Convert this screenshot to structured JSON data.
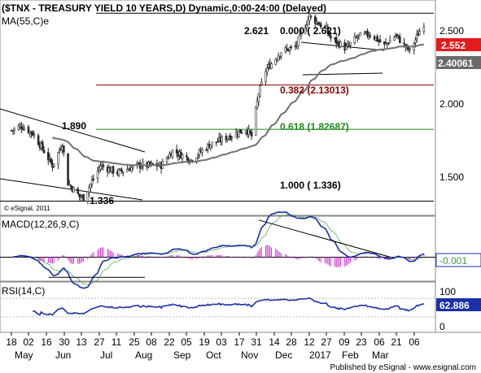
{
  "header": {
    "title": "($TNX - TREASURY YIELD 10 YEARS,D) Dynamic,0:00-24:00 (Delayed)",
    "ma_label": "MA(55,C)e",
    "copyright": "© eSignal, 2011"
  },
  "price_panel": {
    "yaxis": [
      "2.500",
      "2.000",
      "1.500"
    ],
    "last_price": "2.552",
    "ma_value": "2.40061",
    "colors": {
      "last_bg": "#e41a1c",
      "ma_bg": "#6b6b6b",
      "candle": "#2a2a2a",
      "ma_line": "#707070"
    },
    "annotations": {
      "high_0": "2.621",
      "low_label": "1.336",
      "swing_high": "1.890",
      "fib0": "0.000 ( 2.621)",
      "fib382": "0.382 (2.13013)",
      "fib618": "0.618 (1.82687)",
      "fib100": "1.000 ( 1.336)"
    },
    "fib_colors": {
      "fib0": "#000000",
      "fib382": "#8b0000",
      "fib618": "#1a8a1a",
      "fib100": "#000000"
    }
  },
  "macd_panel": {
    "label": "MACD(12,26,9,C)",
    "value": "-0.001",
    "colors": {
      "macd": "#1a2fa8",
      "signal": "#3a9a3a",
      "hist": "#cc33cc"
    }
  },
  "rsi_panel": {
    "label": "RSI(14,C)",
    "value": "62.886",
    "yaxis": [
      "100",
      "0"
    ],
    "color": "#1a2fa8"
  },
  "xaxis": {
    "days": [
      "18",
      "02",
      "16",
      "30",
      "13",
      "27",
      "11",
      "25",
      "08",
      "22",
      "05",
      "19",
      "03",
      "17",
      "31",
      "14",
      "28",
      "12",
      "27",
      "09",
      "23",
      "06",
      "21",
      "06"
    ],
    "months": [
      "May",
      "Jun",
      "Jul",
      "Aug",
      "Sep",
      "Oct",
      "Nov",
      "Dec",
      "2017",
      "Feb",
      "Mar"
    ]
  },
  "footer": "Published by eSignal - www.esignal.com",
  "chart_data": {
    "type": "candlestick",
    "title": "($TNX - TREASURY YIELD 10 YEARS,D) Dynamic,0:00-24:00 (Delayed)",
    "period": "2016-05 to 2017-03 (daily)",
    "close_path": [
      [
        "2016-05-18",
        1.82
      ],
      [
        "2016-05-25",
        1.85
      ],
      [
        "2016-06-02",
        1.8
      ],
      [
        "2016-06-08",
        1.71
      ],
      [
        "2016-06-16",
        1.58
      ],
      [
        "2016-06-23",
        1.73
      ],
      [
        "2016-06-27",
        1.46
      ],
      [
        "2016-07-05",
        1.37
      ],
      [
        "2016-07-08",
        1.36
      ],
      [
        "2016-07-20",
        1.58
      ],
      [
        "2016-08-01",
        1.53
      ],
      [
        "2016-08-15",
        1.58
      ],
      [
        "2016-09-01",
        1.58
      ],
      [
        "2016-09-09",
        1.68
      ],
      [
        "2016-09-22",
        1.62
      ],
      [
        "2016-10-05",
        1.72
      ],
      [
        "2016-10-17",
        1.77
      ],
      [
        "2016-10-31",
        1.83
      ],
      [
        "2016-11-04",
        1.78
      ],
      [
        "2016-11-09",
        2.07
      ],
      [
        "2016-11-14",
        2.23
      ],
      [
        "2016-11-25",
        2.36
      ],
      [
        "2016-12-05",
        2.39
      ],
      [
        "2016-12-15",
        2.6
      ],
      [
        "2016-12-27",
        2.51
      ],
      [
        "2016-12-30",
        2.45
      ],
      [
        "2017-01-10",
        2.38
      ],
      [
        "2017-01-18",
        2.46
      ],
      [
        "2017-01-27",
        2.48
      ],
      [
        "2017-02-06",
        2.4
      ],
      [
        "2017-02-14",
        2.47
      ],
      [
        "2017-02-24",
        2.36
      ],
      [
        "2017-03-02",
        2.48
      ],
      [
        "2017-03-06",
        2.552
      ]
    ],
    "moving_average": {
      "name": "MA(55,C)e",
      "last": 2.40061
    },
    "fibonacci": [
      {
        "ratio": "0.000",
        "value": 2.621
      },
      {
        "ratio": "0.382",
        "value": 2.13013
      },
      {
        "ratio": "0.618",
        "value": 1.82687
      },
      {
        "ratio": "1.000",
        "value": 1.336
      }
    ],
    "ylim": [
      1.25,
      2.7
    ],
    "macd": {
      "name": "MACD(12,26,9,C)",
      "last": -0.001,
      "peak": 0.12,
      "trough": -0.06
    },
    "rsi": {
      "name": "RSI(14,C)",
      "last": 62.886,
      "range": [
        0,
        100
      ]
    }
  }
}
